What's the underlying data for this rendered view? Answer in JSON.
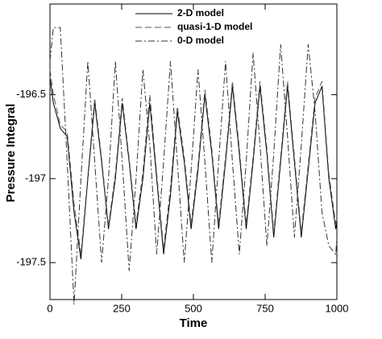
{
  "chart_data": {
    "type": "line",
    "x_label": "Time",
    "y_label": "Pressure Integral",
    "x": [
      0,
      12,
      36,
      60,
      84,
      108,
      132,
      156,
      180,
      204,
      228,
      252,
      276,
      300,
      324,
      348,
      372,
      396,
      420,
      444,
      468,
      492,
      516,
      540,
      564,
      588,
      612,
      636,
      660,
      684,
      708,
      732,
      756,
      780,
      804,
      828,
      852,
      876,
      900,
      924,
      948,
      972,
      996,
      1000
    ],
    "series": [
      {
        "name": "2-D model",
        "color": "#000000",
        "dash": "solid",
        "values": [
          -196.4,
          -196.55,
          -196.7,
          -196.75,
          -197.2,
          -197.48,
          -197.0,
          -196.55,
          -196.9,
          -197.3,
          -197.0,
          -196.55,
          -196.9,
          -197.3,
          -197.0,
          -196.55,
          -197.0,
          -197.45,
          -197.1,
          -196.6,
          -196.9,
          -197.3,
          -196.95,
          -196.5,
          -196.85,
          -197.3,
          -196.9,
          -196.45,
          -196.85,
          -197.3,
          -196.9,
          -196.45,
          -196.85,
          -197.35,
          -196.9,
          -196.45,
          -196.9,
          -197.35,
          -196.95,
          -196.55,
          -196.45,
          -197.0,
          -197.3,
          -197.25
        ]
      },
      {
        "name": "quasi-1-D model",
        "color": "#555555",
        "dash": "dashed",
        "values": [
          -196.35,
          -196.5,
          -196.68,
          -196.72,
          -197.15,
          -197.45,
          -196.98,
          -196.52,
          -196.88,
          -197.28,
          -196.97,
          -196.52,
          -196.88,
          -197.27,
          -196.96,
          -196.5,
          -196.97,
          -197.42,
          -197.05,
          -196.57,
          -196.87,
          -197.27,
          -196.92,
          -196.47,
          -196.82,
          -197.27,
          -196.87,
          -196.42,
          -196.82,
          -197.27,
          -196.87,
          -196.42,
          -196.82,
          -197.32,
          -196.87,
          -196.42,
          -196.87,
          -197.32,
          -196.92,
          -196.52,
          -196.42,
          -196.97,
          -197.27,
          -197.22
        ]
      },
      {
        "name": "0-D model",
        "color": "#333333",
        "dash": "dashdot",
        "values": [
          -196.3,
          -196.1,
          -196.1,
          -196.9,
          -197.75,
          -197.0,
          -196.3,
          -196.9,
          -197.5,
          -197.0,
          -196.3,
          -196.9,
          -197.55,
          -197.0,
          -196.35,
          -196.8,
          -197.45,
          -196.9,
          -196.3,
          -196.9,
          -197.5,
          -196.95,
          -196.35,
          -196.9,
          -197.5,
          -196.9,
          -196.3,
          -196.9,
          -197.45,
          -196.9,
          -196.25,
          -196.8,
          -197.4,
          -196.85,
          -196.2,
          -196.75,
          -197.35,
          -196.8,
          -196.2,
          -196.6,
          -197.2,
          -197.4,
          -197.45,
          -197.35
        ]
      }
    ],
    "xlim": [
      0,
      1000
    ],
    "xticks": [
      0,
      250,
      500,
      750,
      1000
    ],
    "ylim": [
      -197.72,
      -195.96
    ],
    "yticks": [
      -196.5,
      -197,
      -197.5
    ],
    "grid": false,
    "legend": "top"
  }
}
